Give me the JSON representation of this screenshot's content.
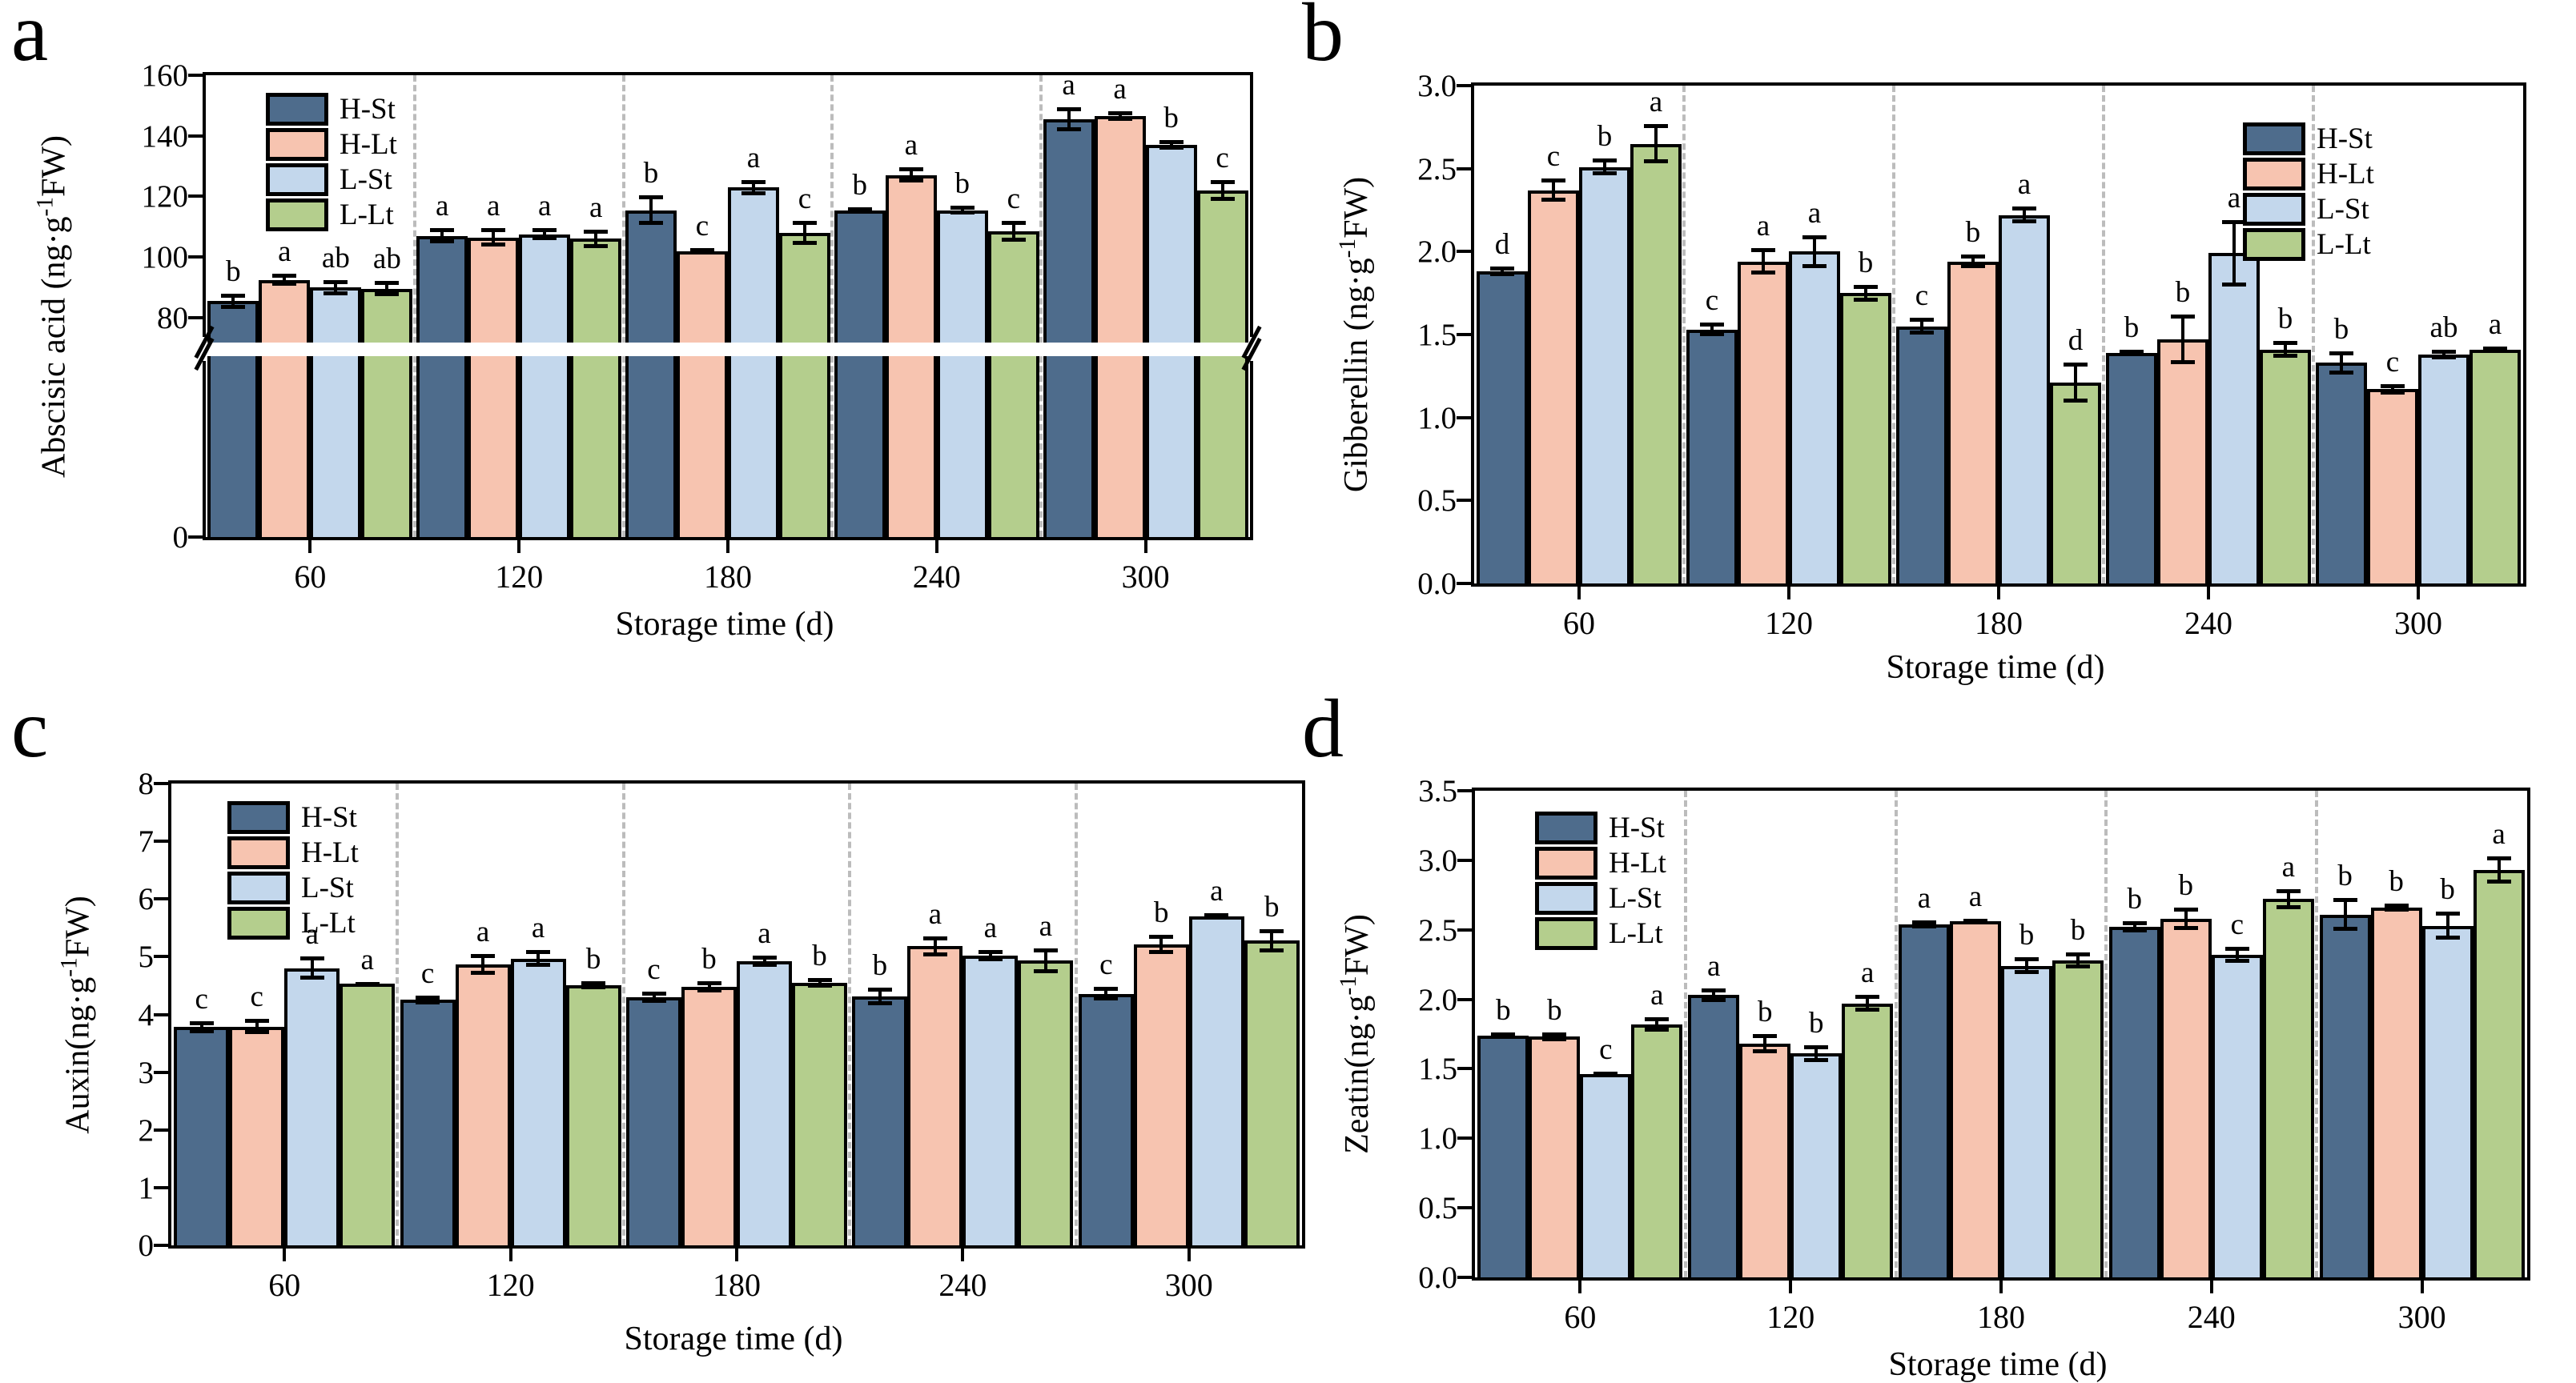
{
  "figure": {
    "background": "#ffffff",
    "separator_color": "#bcbcbc",
    "axis_color": "#000000",
    "panel_letters": [
      "a",
      "b",
      "c",
      "d"
    ]
  },
  "legend": {
    "items": [
      {
        "label": "H-St",
        "color": "#4e6c8c"
      },
      {
        "label": "H-Lt",
        "color": "#f7c4b0"
      },
      {
        "label": "L-St",
        "color": "#c3d7ec"
      },
      {
        "label": "L-Lt",
        "color": "#b4ce8d"
      }
    ]
  },
  "chart_data": [
    {
      "panel": "a",
      "type": "bar",
      "title": "",
      "ylabel": "Abscisic acid (ng·g⁻¹FW)",
      "xlabel": "Storage time (d)",
      "categories": [
        "60",
        "120",
        "180",
        "240",
        "300"
      ],
      "ylim": [
        0,
        160
      ],
      "broken_axis": true,
      "break_between": [
        0,
        80
      ],
      "grid": false,
      "legend_position": "top-left",
      "yticks": [
        {
          "v": 160,
          "label": "160"
        },
        {
          "v": 140,
          "label": "140"
        },
        {
          "v": 120,
          "label": "120"
        },
        {
          "v": 100,
          "label": "100"
        },
        {
          "v": 80,
          "label": "80"
        },
        {
          "v": 0,
          "label": "0"
        }
      ],
      "series": [
        {
          "name": "H-St",
          "color": "#4e6c8c",
          "values": [
            85.5,
            107,
            115.5,
            115.5,
            145.5
          ],
          "errors": [
            2.5,
            2.5,
            5,
            1,
            4
          ],
          "letters": [
            "b",
            "a",
            "b",
            "b",
            "a"
          ]
        },
        {
          "name": "H-Lt",
          "color": "#f7c4b0",
          "values": [
            92.5,
            106.5,
            102,
            127,
            146.5
          ],
          "errors": [
            2,
            3,
            1,
            2.5,
            1.5
          ],
          "letters": [
            "a",
            "a",
            "c",
            "a",
            "a"
          ]
        },
        {
          "name": "L-St",
          "color": "#c3d7ec",
          "values": [
            90,
            107.5,
            123,
            115.5,
            137
          ],
          "errors": [
            2.5,
            2,
            2.5,
            1.5,
            1.5
          ],
          "letters": [
            "ab",
            "a",
            "a",
            "b",
            "b"
          ]
        },
        {
          "name": "L-Lt",
          "color": "#b4ce8d",
          "values": [
            89.5,
            106,
            108,
            108.5,
            122
          ],
          "errors": [
            2.5,
            3,
            4,
            3.5,
            3.5
          ],
          "letters": [
            "ab",
            "a",
            "c",
            "c",
            "c"
          ]
        }
      ]
    },
    {
      "panel": "b",
      "type": "bar",
      "title": "",
      "ylabel": "Gibberellin (ng·g⁻¹FW)",
      "xlabel": "Storage time (d)",
      "categories": [
        "60",
        "120",
        "180",
        "240",
        "300"
      ],
      "ylim": [
        0,
        3.0
      ],
      "broken_axis": false,
      "grid": false,
      "legend_position": "top-right",
      "yticks": [
        {
          "v": 3.0,
          "label": "3.0"
        },
        {
          "v": 2.5,
          "label": "2.5"
        },
        {
          "v": 2.0,
          "label": "2.0"
        },
        {
          "v": 1.5,
          "label": "1.5"
        },
        {
          "v": 1.0,
          "label": "1.0"
        },
        {
          "v": 0.5,
          "label": "0.5"
        },
        {
          "v": 0.0,
          "label": "0.0"
        }
      ],
      "series": [
        {
          "name": "H-St",
          "color": "#4e6c8c",
          "values": [
            1.88,
            1.53,
            1.55,
            1.39,
            1.33
          ],
          "errors": [
            0.03,
            0.04,
            0.05,
            0.02,
            0.07
          ],
          "letters": [
            "d",
            "c",
            "c",
            "b",
            "b"
          ]
        },
        {
          "name": "H-Lt",
          "color": "#f7c4b0",
          "values": [
            2.37,
            1.94,
            1.94,
            1.47,
            1.17
          ],
          "errors": [
            0.07,
            0.08,
            0.04,
            0.15,
            0.03
          ],
          "letters": [
            "c",
            "a",
            "b",
            "b",
            "c"
          ]
        },
        {
          "name": "L-St",
          "color": "#c3d7ec",
          "values": [
            2.51,
            2.0,
            2.22,
            1.99,
            1.38
          ],
          "errors": [
            0.05,
            0.1,
            0.05,
            0.2,
            0.03
          ],
          "letters": [
            "b",
            "a",
            "a",
            "a",
            "ab"
          ]
        },
        {
          "name": "L-Lt",
          "color": "#b4ce8d",
          "values": [
            2.65,
            1.75,
            1.21,
            1.41,
            1.41
          ],
          "errors": [
            0.12,
            0.05,
            0.12,
            0.05,
            0.02
          ],
          "letters": [
            "a",
            "b",
            "d",
            "b",
            "a"
          ]
        }
      ]
    },
    {
      "panel": "c",
      "type": "bar",
      "title": "",
      "ylabel": "Auxin(ng·g⁻¹FW)",
      "xlabel": "Storage time (d)",
      "categories": [
        "60",
        "120",
        "180",
        "240",
        "300"
      ],
      "ylim": [
        0,
        8
      ],
      "broken_axis": false,
      "grid": false,
      "legend_position": "top-left",
      "yticks": [
        {
          "v": 8,
          "label": "8"
        },
        {
          "v": 7,
          "label": "7"
        },
        {
          "v": 6,
          "label": "6"
        },
        {
          "v": 5,
          "label": "5"
        },
        {
          "v": 4,
          "label": "4"
        },
        {
          "v": 3,
          "label": "3"
        },
        {
          "v": 2,
          "label": "2"
        },
        {
          "v": 1,
          "label": "1"
        },
        {
          "v": 0,
          "label": "0"
        }
      ],
      "series": [
        {
          "name": "H-St",
          "color": "#4e6c8c",
          "values": [
            3.78,
            4.25,
            4.3,
            4.31,
            4.36
          ],
          "errors": [
            0.1,
            0.07,
            0.1,
            0.15,
            0.12
          ],
          "letters": [
            "c",
            "c",
            "c",
            "b",
            "c"
          ]
        },
        {
          "name": "H-Lt",
          "color": "#f7c4b0",
          "values": [
            3.79,
            4.87,
            4.48,
            5.18,
            5.21
          ],
          "errors": [
            0.13,
            0.18,
            0.1,
            0.17,
            0.17
          ],
          "letters": [
            "c",
            "a",
            "b",
            "a",
            "b"
          ]
        },
        {
          "name": "L-St",
          "color": "#c3d7ec",
          "values": [
            4.8,
            4.97,
            4.92,
            5.02,
            5.7
          ],
          "errors": [
            0.2,
            0.15,
            0.1,
            0.1,
            0.05
          ],
          "letters": [
            "a",
            "a",
            "a",
            "a",
            "a"
          ]
        },
        {
          "name": "L-Lt",
          "color": "#b4ce8d",
          "values": [
            4.53,
            4.51,
            4.55,
            4.93,
            5.28
          ],
          "errors": [
            0.03,
            0.07,
            0.08,
            0.22,
            0.2
          ],
          "letters": [
            "a",
            "b",
            "b",
            "a",
            "b"
          ]
        }
      ]
    },
    {
      "panel": "d",
      "type": "bar",
      "title": "",
      "ylabel": "Zeatin(ng·g⁻¹FW)",
      "xlabel": "Storage time (d)",
      "categories": [
        "60",
        "120",
        "180",
        "240",
        "300"
      ],
      "ylim": [
        0,
        3.5
      ],
      "broken_axis": false,
      "grid": false,
      "legend_position": "top-left",
      "yticks": [
        {
          "v": 3.5,
          "label": "3.5"
        },
        {
          "v": 3.0,
          "label": "3.0"
        },
        {
          "v": 2.5,
          "label": "2.5"
        },
        {
          "v": 2.0,
          "label": "2.0"
        },
        {
          "v": 1.5,
          "label": "1.5"
        },
        {
          "v": 1.0,
          "label": "1.0"
        },
        {
          "v": 0.5,
          "label": "0.5"
        },
        {
          "v": 0.0,
          "label": "0.0"
        }
      ],
      "series": [
        {
          "name": "H-St",
          "color": "#4e6c8c",
          "values": [
            1.74,
            2.03,
            2.54,
            2.52,
            2.61
          ],
          "errors": [
            0.02,
            0.05,
            0.03,
            0.04,
            0.12
          ],
          "letters": [
            "b",
            "a",
            "a",
            "b",
            "b"
          ]
        },
        {
          "name": "H-Lt",
          "color": "#f7c4b0",
          "values": [
            1.73,
            1.68,
            2.56,
            2.58,
            2.66
          ],
          "errors": [
            0.03,
            0.07,
            0.02,
            0.08,
            0.03
          ],
          "letters": [
            "b",
            "b",
            "a",
            "b",
            "b"
          ]
        },
        {
          "name": "L-St",
          "color": "#c3d7ec",
          "values": [
            1.46,
            1.61,
            2.24,
            2.32,
            2.53
          ],
          "errors": [
            0.02,
            0.06,
            0.06,
            0.06,
            0.1
          ],
          "letters": [
            "c",
            "b",
            "b",
            "c",
            "b"
          ]
        },
        {
          "name": "L-Lt",
          "color": "#b4ce8d",
          "values": [
            1.82,
            1.97,
            2.28,
            2.72,
            2.93
          ],
          "errors": [
            0.05,
            0.06,
            0.06,
            0.07,
            0.1
          ],
          "letters": [
            "a",
            "a",
            "b",
            "a",
            "a"
          ]
        }
      ]
    }
  ]
}
